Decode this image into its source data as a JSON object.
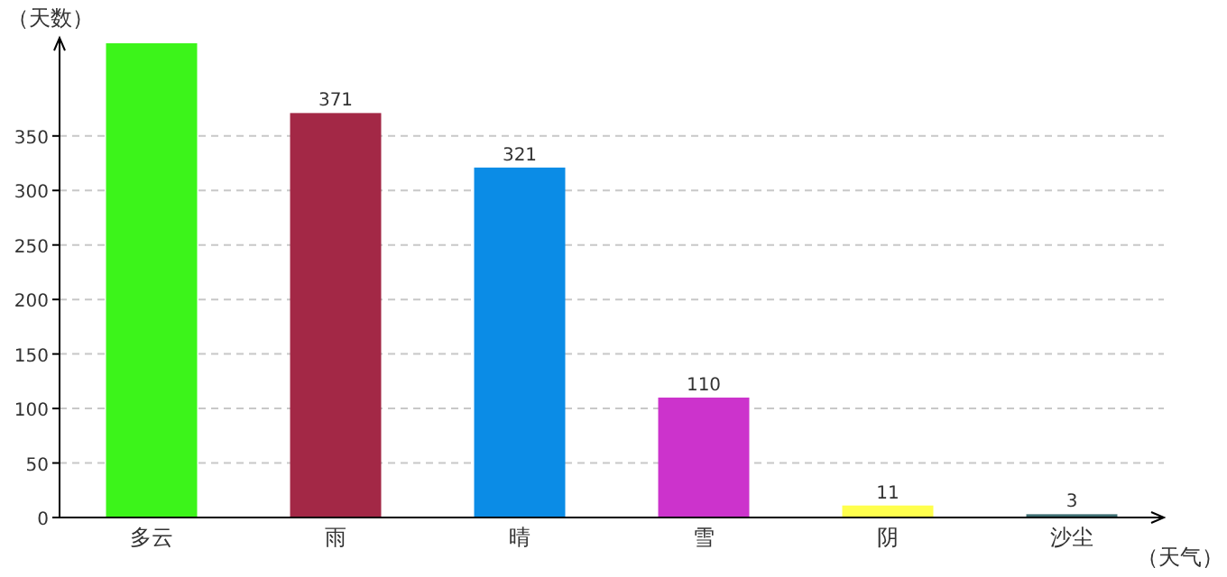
{
  "chart_data": {
    "type": "bar",
    "xlabel": "（天气）",
    "ylabel": "（天数）",
    "categories": [
      "多云",
      "雨",
      "晴",
      "雪",
      "阴",
      "沙尘"
    ],
    "values": [
      435,
      371,
      321,
      110,
      11,
      3
    ],
    "value_labels": [
      null,
      "371",
      "321",
      "110",
      "11",
      "3"
    ],
    "colors": [
      "#3cf41a",
      "#a32846",
      "#0b8ce6",
      "#cc33cc",
      "#ffff4d",
      "#3d6e72"
    ],
    "ylim": [
      0,
      435
    ],
    "yticks": [
      0,
      50,
      100,
      150,
      200,
      250,
      300,
      350
    ],
    "grid": "y"
  }
}
